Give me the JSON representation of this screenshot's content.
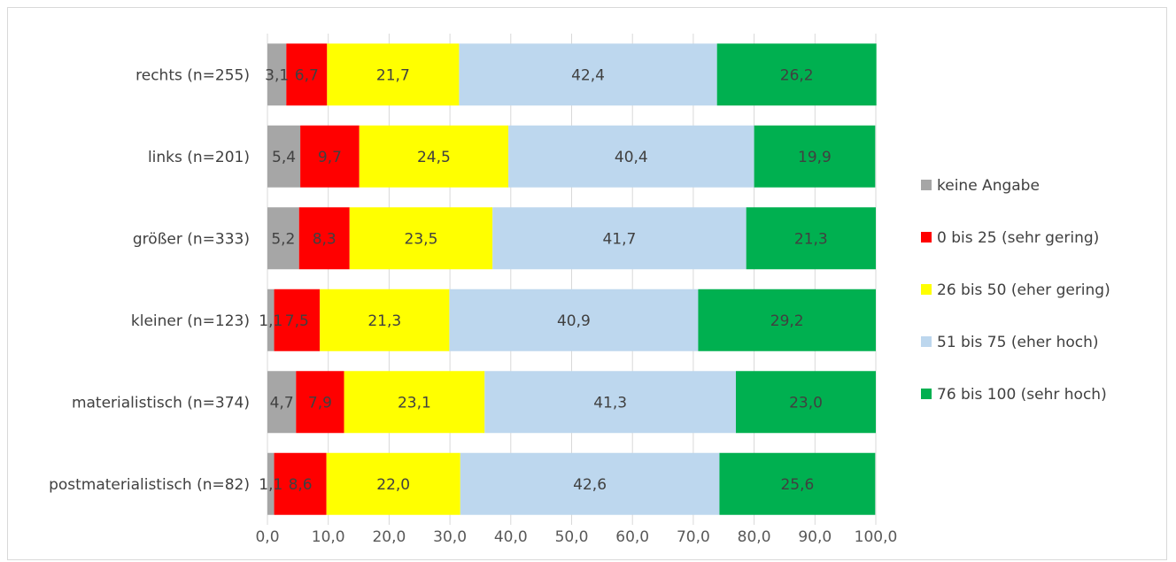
{
  "chart_data": {
    "type": "bar",
    "orientation": "horizontal",
    "stacked": true,
    "title": "",
    "xlabel": "",
    "ylabel": "",
    "xlim": [
      0,
      100
    ],
    "x_ticks": [
      "0,0",
      "10,0",
      "20,0",
      "30,0",
      "40,0",
      "50,0",
      "60,0",
      "70,0",
      "80,0",
      "90,0",
      "100,0"
    ],
    "grid": true,
    "legend_position": "right",
    "categories": [
      "rechts (n=255)",
      "links (n=201)",
      "größer (n=333)",
      "kleiner (n=123)",
      "materialistisch (n=374)",
      "postmaterialistisch (n=82)"
    ],
    "series": [
      {
        "name": "keine Angabe",
        "color": "#a6a6a6",
        "values": [
          3.1,
          5.4,
          5.2,
          1.1,
          4.7,
          1.1
        ],
        "labels": [
          "3,1",
          "5,4",
          "5,2",
          "1,1",
          "4,7",
          "1,1"
        ]
      },
      {
        "name": "0 bis 25 (sehr gering)",
        "color": "#ff0000",
        "values": [
          6.7,
          9.7,
          8.3,
          7.5,
          7.9,
          8.6
        ],
        "labels": [
          "6,7",
          "9,7",
          "8,3",
          "7,5",
          "7,9",
          "8,6"
        ]
      },
      {
        "name": "26 bis 50 (eher gering)",
        "color": "#ffff00",
        "values": [
          21.7,
          24.5,
          23.5,
          21.3,
          23.1,
          22.0
        ],
        "labels": [
          "21,7",
          "24,5",
          "23,5",
          "21,3",
          "23,1",
          "22,0"
        ]
      },
      {
        "name": "51 bis 75 (eher hoch)",
        "color": "#bdd7ee",
        "values": [
          42.4,
          40.4,
          41.7,
          40.9,
          41.3,
          42.6
        ],
        "labels": [
          "42,4",
          "40,4",
          "41,7",
          "40,9",
          "41,3",
          "42,6"
        ]
      },
      {
        "name": "76 bis 100 (sehr hoch)",
        "color": "#00b050",
        "values": [
          26.2,
          19.9,
          21.3,
          29.2,
          23.0,
          25.6
        ],
        "labels": [
          "26,2",
          "19,9",
          "21,3",
          "29,2",
          "23,0",
          "25,6"
        ]
      }
    ]
  }
}
